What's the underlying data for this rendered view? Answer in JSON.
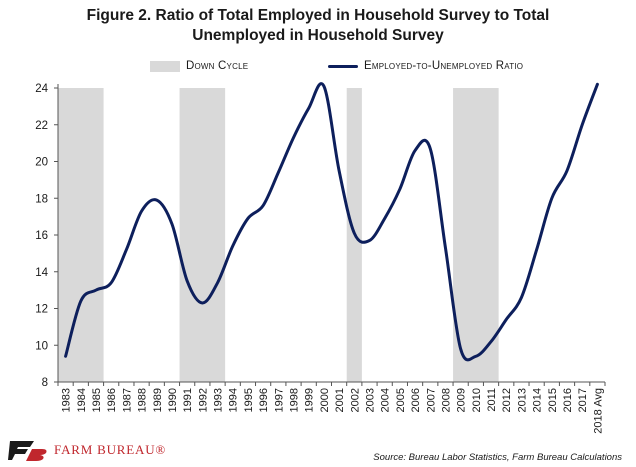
{
  "chart_data": {
    "type": "line",
    "title_line1": "Figure 2. Ratio of Total Employed in Household Survey to Total",
    "title_line2": "Unemployed in Household Survey",
    "categories": [
      "1983",
      "1984",
      "1985",
      "1986",
      "1987",
      "1988",
      "1989",
      "1990",
      "1991",
      "1992",
      "1993",
      "1994",
      "1995",
      "1996",
      "1997",
      "1998",
      "1999",
      "2000",
      "2001",
      "2002",
      "2003",
      "2004",
      "2005",
      "2006",
      "2007",
      "2008",
      "2009",
      "2010",
      "2011",
      "2012",
      "2013",
      "2014",
      "2015",
      "2016",
      "2017",
      "2018 Avg"
    ],
    "series": [
      {
        "name": "Employed-to-Unemployed Ratio",
        "color": "#0d1f5c",
        "values": [
          9.4,
          12.4,
          13.0,
          13.4,
          15.2,
          17.3,
          17.9,
          16.6,
          13.5,
          12.3,
          13.4,
          15.4,
          16.9,
          17.6,
          19.4,
          21.3,
          22.9,
          24.1,
          19.5,
          16.1,
          15.7,
          16.9,
          18.5,
          20.6,
          20.7,
          15.3,
          9.8,
          9.4,
          10.2,
          11.4,
          12.6,
          15.2,
          18.0,
          19.5,
          22.0,
          24.2
        ]
      }
    ],
    "shading": {
      "name": "Down Cycle",
      "color": "#d9d9d9",
      "ranges": [
        [
          "1983",
          "1985"
        ],
        [
          "1991",
          "1993"
        ],
        [
          "2002",
          "2002"
        ],
        [
          "2009",
          "2011"
        ]
      ]
    },
    "ylim": [
      8,
      24
    ],
    "yticks": [
      8,
      10,
      12,
      14,
      16,
      18,
      20,
      22,
      24
    ],
    "grid": false,
    "legend_position": "top-center",
    "source": "Source: Bureau Labor Statistics, Farm Bureau Calculations"
  },
  "branding": {
    "logo_text": "FARM BUREAU®",
    "logo_color": "#c0272d"
  }
}
